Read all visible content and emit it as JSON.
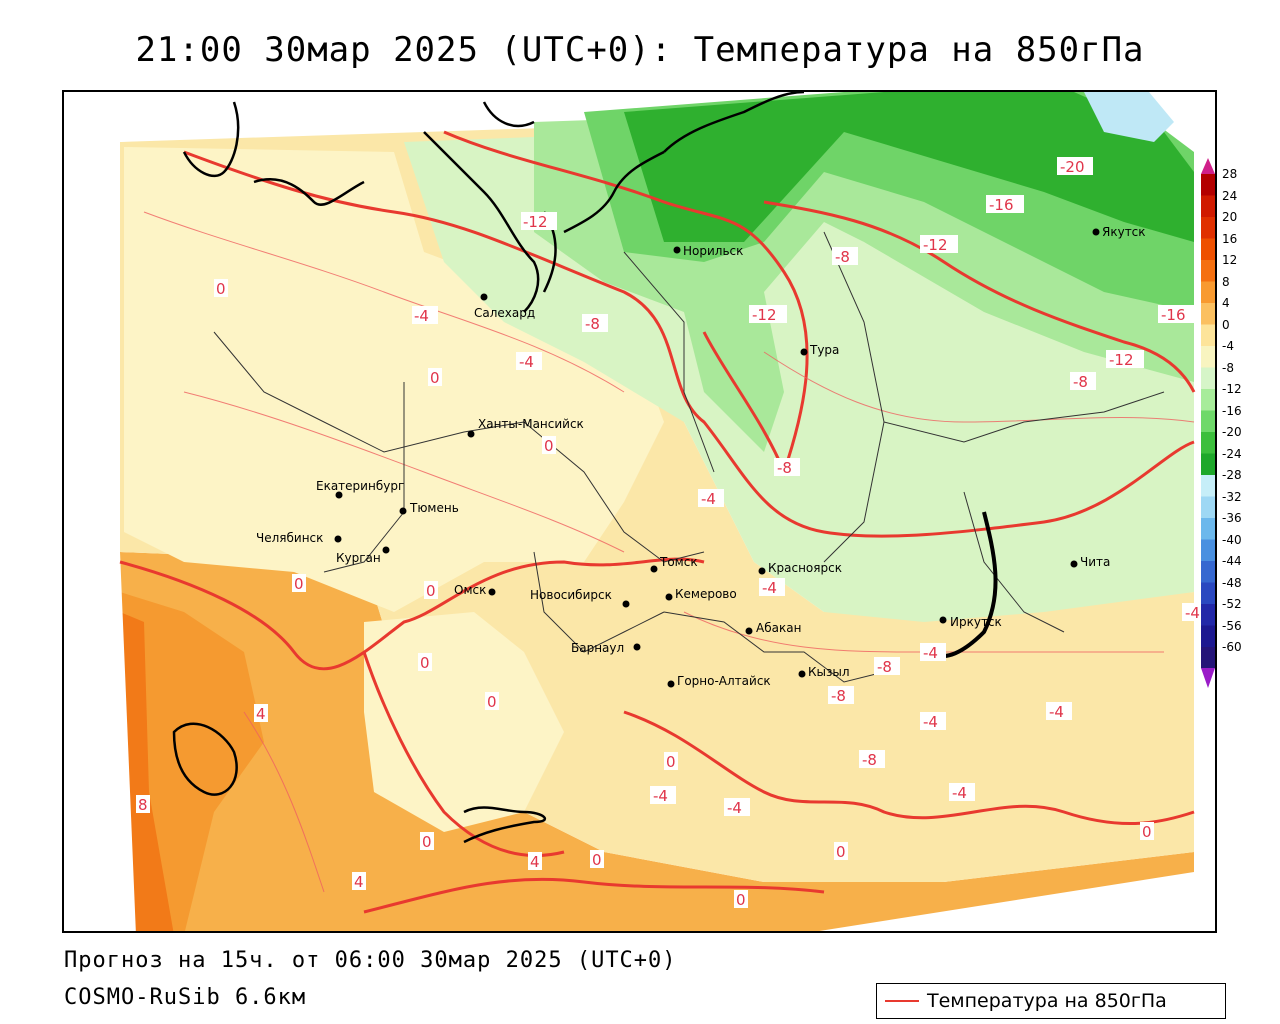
{
  "title": "21:00 30мар 2025 (UTC+0): Температура на 850гПа",
  "footer": {
    "forecast": "Прогноз на 15ч. от 06:00 30мар 2025 (UTC+0)",
    "model": "COSMO-RuSib 6.6км"
  },
  "legend": {
    "label": "Температура на 850гПа",
    "line_color": "#e8392f"
  },
  "colorbar": {
    "ticks": [
      "28",
      "24",
      "20",
      "16",
      "12",
      "8",
      "4",
      "0",
      "-4",
      "-8",
      "-12",
      "-16",
      "-20",
      "-24",
      "-28",
      "-32",
      "-36",
      "-40",
      "-44",
      "-48",
      "-52",
      "-56",
      "-60"
    ],
    "colors": [
      "#b30000",
      "#d01a00",
      "#e03000",
      "#ee5000",
      "#f57010",
      "#f89a30",
      "#fbc060",
      "#fde49a",
      "#f8f4c0",
      "#d6f5c8",
      "#a7ec9a",
      "#6fd96a",
      "#3cbf3c",
      "#1ea82a",
      "#c6eef8",
      "#9ed8f4",
      "#6cb8ec",
      "#4a90e0",
      "#3668d0",
      "#2a48c0",
      "#2228a8",
      "#1c1890",
      "#241478"
    ],
    "top_arrow_color": "#d0208a",
    "bottom_arrow_color": "#9a1cc8"
  },
  "cities": [
    {
      "name": "Норильск"
    },
    {
      "name": "Якутск"
    },
    {
      "name": "Салехард"
    },
    {
      "name": "Тура"
    },
    {
      "name": "Ханты-Мансийск"
    },
    {
      "name": "Екатеринбург"
    },
    {
      "name": "Тюмень"
    },
    {
      "name": "Челябинск"
    },
    {
      "name": "Курган"
    },
    {
      "name": "Омск"
    },
    {
      "name": "Новосибирск"
    },
    {
      "name": "Томск"
    },
    {
      "name": "Кемерово"
    },
    {
      "name": "Красноярск"
    },
    {
      "name": "Барнаул"
    },
    {
      "name": "Абакан"
    },
    {
      "name": "Иркутск"
    },
    {
      "name": "Чита"
    },
    {
      "name": "Кызыл"
    },
    {
      "name": "Горно-Алтайск"
    }
  ],
  "isolines": [
    {
      "value": "-20"
    },
    {
      "value": "-16"
    },
    {
      "value": "-12"
    },
    {
      "value": "-12"
    },
    {
      "value": "-16"
    },
    {
      "value": "-12"
    },
    {
      "value": "-12"
    },
    {
      "value": "-8"
    },
    {
      "value": "-8"
    },
    {
      "value": "-8"
    },
    {
      "value": "-8"
    },
    {
      "value": "-4"
    },
    {
      "value": "-4"
    },
    {
      "value": "-4"
    },
    {
      "value": "-4"
    },
    {
      "value": "-4"
    },
    {
      "value": "-4"
    },
    {
      "value": "-8"
    },
    {
      "value": "-8"
    },
    {
      "value": "-8"
    },
    {
      "value": "-4"
    },
    {
      "value": "-4"
    },
    {
      "value": "-4"
    },
    {
      "value": "-4"
    },
    {
      "value": "0"
    },
    {
      "value": "0"
    },
    {
      "value": "0"
    },
    {
      "value": "0"
    },
    {
      "value": "0"
    },
    {
      "value": "0"
    },
    {
      "value": "0"
    },
    {
      "value": "0"
    },
    {
      "value": "0"
    },
    {
      "value": "0"
    },
    {
      "value": "0"
    },
    {
      "value": "0"
    },
    {
      "value": "4"
    },
    {
      "value": "4"
    },
    {
      "value": "4"
    },
    {
      "value": "8"
    },
    {
      "value": "-4"
    },
    {
      "value": "0"
    }
  ]
}
